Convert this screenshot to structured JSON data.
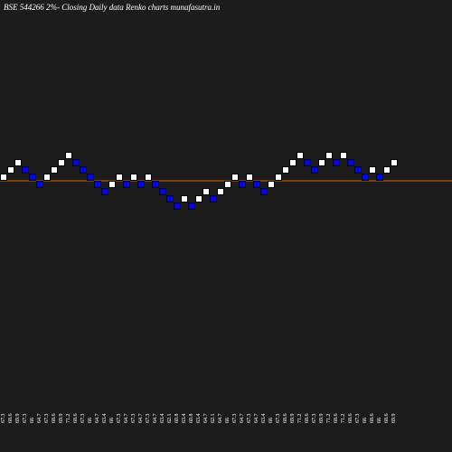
{
  "chart_data": {
    "type": "renko",
    "title": "BSE 544266  2%-  Closing Daily data  Renko  charts munafasutra.in",
    "up_color": "#ffffff",
    "down_color": "#0000ff",
    "reference_line": {
      "value": 66,
      "color": "#cc6600"
    },
    "ylim": [
      27,
      92
    ],
    "values": [
      67.3,
      68.6,
      69.9,
      67.3,
      66,
      64.7,
      67.3,
      68.6,
      69.9,
      71.2,
      68.6,
      67.3,
      66,
      64.7,
      63.4,
      66,
      67.3,
      64.7,
      67.3,
      64.7,
      67.3,
      64.7,
      63.4,
      62.1,
      60.8,
      63.4,
      60.8,
      63.4,
      64.7,
      62.1,
      64.7,
      66,
      67.3,
      64.7,
      67.3,
      64.7,
      63.4,
      66,
      67.3,
      68.6,
      69.9,
      71.2,
      68.6,
      67.3,
      69.9,
      71.2,
      68.6,
      71.2,
      68.6,
      67.3,
      66,
      68.6,
      66,
      68.6,
      69.9
    ]
  }
}
